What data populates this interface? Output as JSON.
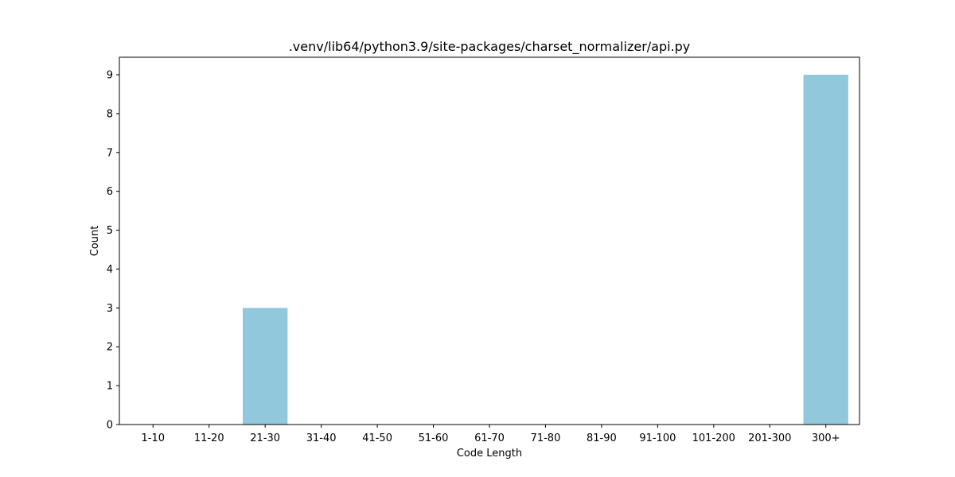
{
  "chart_data": {
    "type": "bar",
    "title": ".venv/lib64/python3.9/site-packages/charset_normalizer/api.py",
    "xlabel": "Code Length",
    "ylabel": "Count",
    "categories": [
      "1-10",
      "11-20",
      "21-30",
      "31-40",
      "41-50",
      "51-60",
      "61-70",
      "71-80",
      "81-90",
      "91-100",
      "101-200",
      "201-300",
      "300+"
    ],
    "values": [
      0,
      0,
      3,
      0,
      0,
      0,
      0,
      0,
      0,
      0,
      0,
      0,
      9
    ],
    "ylim": [
      0,
      9.45
    ],
    "yticks": [
      0,
      1,
      2,
      3,
      4,
      5,
      6,
      7,
      8,
      9
    ],
    "grid": false,
    "bar_color": "#92c8dc"
  }
}
